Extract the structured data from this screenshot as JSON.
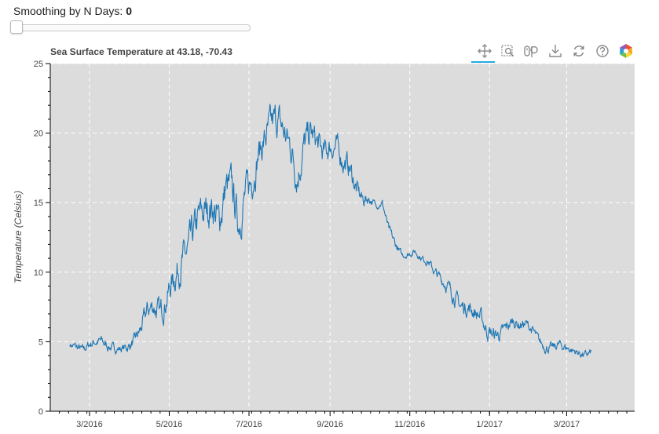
{
  "slider": {
    "label": "Smoothing by N Days:",
    "value": "0"
  },
  "toolbar": {
    "tools": [
      "pan-icon",
      "box-zoom-icon",
      "wheel-zoom-icon",
      "save-icon",
      "reset-icon",
      "help-icon",
      "bokeh-logo"
    ],
    "active": "pan-icon"
  },
  "colors": {
    "line": "#1f77b4",
    "plot_bg": "#dcdcdc",
    "grid": "#ffffff",
    "active_tool": "#26aae1"
  },
  "chart_data": {
    "type": "line",
    "title": "Sea Surface Temperature at 43.18, -70.43",
    "xlabel": "",
    "ylabel": "Temperature (Celsius)",
    "x_range": [
      "2016-01-31",
      "2017-04-22"
    ],
    "ylim": [
      0,
      25
    ],
    "yticks": [
      0,
      5,
      10,
      15,
      20,
      25
    ],
    "xticks": [
      {
        "date": "2016-03-01",
        "label": "3/2016"
      },
      {
        "date": "2016-05-01",
        "label": "5/2016"
      },
      {
        "date": "2016-07-01",
        "label": "7/2016"
      },
      {
        "date": "2016-09-01",
        "label": "9/2016"
      },
      {
        "date": "2016-11-01",
        "label": "11/2016"
      },
      {
        "date": "2017-01-01",
        "label": "1/2017"
      },
      {
        "date": "2017-03-01",
        "label": "3/2017"
      }
    ],
    "grid": true,
    "grid_style": "dashed",
    "series": [
      {
        "dates": [
          "2016-02-15",
          "2016-02-20",
          "2016-02-25",
          "2016-03-01",
          "2016-03-05",
          "2016-03-10",
          "2016-03-15",
          "2016-03-20",
          "2016-03-25",
          "2016-03-30",
          "2016-04-04",
          "2016-04-09",
          "2016-04-14",
          "2016-04-19",
          "2016-04-24",
          "2016-04-29",
          "2016-05-04",
          "2016-05-09",
          "2016-05-14",
          "2016-05-19",
          "2016-05-24",
          "2016-05-29",
          "2016-06-03",
          "2016-06-08",
          "2016-06-13",
          "2016-06-18",
          "2016-06-23",
          "2016-06-28",
          "2016-07-03",
          "2016-07-08",
          "2016-07-13",
          "2016-07-18",
          "2016-07-23",
          "2016-07-28",
          "2016-08-02",
          "2016-08-07",
          "2016-08-12",
          "2016-08-17",
          "2016-08-22",
          "2016-08-27",
          "2016-09-01",
          "2016-09-06",
          "2016-09-11",
          "2016-09-16",
          "2016-09-21",
          "2016-09-26",
          "2016-10-01",
          "2016-10-06",
          "2016-10-11",
          "2016-10-16",
          "2016-10-21",
          "2016-10-26",
          "2016-10-31",
          "2016-11-05",
          "2016-11-10",
          "2016-11-15",
          "2016-11-20",
          "2016-11-25",
          "2016-11-30",
          "2016-12-05",
          "2016-12-10",
          "2016-12-15",
          "2016-12-20",
          "2016-12-25",
          "2016-12-30",
          "2017-01-04",
          "2017-01-09",
          "2017-01-14",
          "2017-01-19",
          "2017-01-24",
          "2017-01-29",
          "2017-02-03",
          "2017-02-08",
          "2017-02-13",
          "2017-02-18",
          "2017-02-23",
          "2017-02-28",
          "2017-03-05",
          "2017-03-10",
          "2017-03-15",
          "2017-03-20"
        ],
        "values": [
          4.8,
          4.6,
          4.4,
          4.8,
          5.0,
          5.0,
          4.7,
          4.5,
          4.5,
          4.6,
          5.0,
          5.8,
          7.2,
          7.6,
          7.0,
          8.2,
          9.5,
          10.5,
          11.2,
          12.5,
          14.0,
          14.4,
          14.8,
          13.5,
          16.0,
          16.0,
          13.5,
          15.5,
          16.5,
          18.5,
          19.5,
          20.5,
          21.0,
          20.0,
          19.0,
          17.0,
          19.0,
          20.0,
          19.3,
          18.5,
          19.0,
          19.0,
          18.0,
          17.5,
          16.0,
          15.2,
          15.3,
          14.8,
          15.0,
          13.0,
          12.0,
          11.2,
          11.3,
          11.5,
          11.0,
          10.8,
          10.0,
          9.5,
          9.0,
          8.3,
          7.5,
          7.5,
          7.2,
          6.8,
          5.8,
          5.5,
          5.5,
          6.0,
          6.5,
          6.2,
          6.3,
          5.8,
          5.0,
          4.6,
          4.5,
          4.8,
          4.6,
          4.4,
          4.2,
          4.0,
          4.2
        ],
        "noise": [
          0.2,
          0.3,
          0.25,
          0.3,
          0.3,
          0.35,
          0.3,
          0.25,
          0.25,
          0.3,
          0.35,
          0.5,
          0.6,
          0.7,
          0.7,
          0.8,
          0.9,
          1.0,
          1.0,
          1.1,
          1.1,
          1.0,
          1.1,
          1.2,
          1.2,
          1.1,
          1.1,
          1.1,
          1.0,
          1.0,
          1.0,
          1.0,
          1.0,
          1.0,
          1.0,
          1.1,
          1.0,
          0.9,
          0.8,
          0.8,
          0.7,
          0.7,
          0.7,
          0.7,
          0.6,
          0.5,
          0.3,
          0.2,
          0.2,
          0.3,
          0.3,
          0.2,
          0.2,
          0.2,
          0.2,
          0.25,
          0.3,
          0.35,
          0.4,
          0.45,
          0.5,
          0.5,
          0.5,
          0.5,
          0.5,
          0.45,
          0.4,
          0.4,
          0.35,
          0.35,
          0.3,
          0.3,
          0.3,
          0.3,
          0.3,
          0.3,
          0.3,
          0.25,
          0.25,
          0.25,
          0.25
        ]
      }
    ]
  }
}
